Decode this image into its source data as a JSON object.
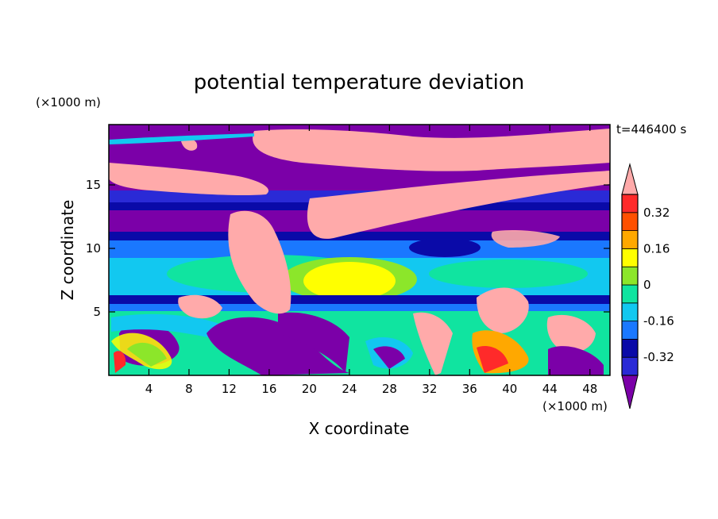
{
  "chart_data": {
    "type": "heatmap",
    "title": "potential temperature deviation",
    "time_label": "t=446400 s",
    "xlabel": "X coordinate",
    "ylabel": "Z coordinate",
    "x_unit": "(×1000 m)",
    "y_unit": "(×1000 m)",
    "xlim": [
      0,
      50
    ],
    "ylim": [
      0,
      19.75
    ],
    "x_ticks": [
      4,
      8,
      12,
      16,
      20,
      24,
      28,
      32,
      36,
      40,
      44,
      48
    ],
    "y_ticks": [
      5,
      10,
      15
    ],
    "colorbar": {
      "labels": [
        "0.32",
        "0.16",
        "0",
        "-0.16",
        "-0.32"
      ],
      "label_values": [
        0.32,
        0.16,
        0,
        -0.16,
        -0.32
      ],
      "levels": [
        -0.4,
        -0.32,
        -0.24,
        -0.16,
        -0.08,
        0,
        0.08,
        0.16,
        0.24,
        0.32,
        0.4
      ],
      "colors": [
        "#7b00a8",
        "#2a2ad6",
        "#0a0aa8",
        "#1a78ff",
        "#12c8f0",
        "#10e4a0",
        "#8ce62a",
        "#ffff00",
        "#ffa800",
        "#ff5000",
        "#ff2a2a",
        "#ffaaaa"
      ],
      "extends": "both"
    }
  }
}
